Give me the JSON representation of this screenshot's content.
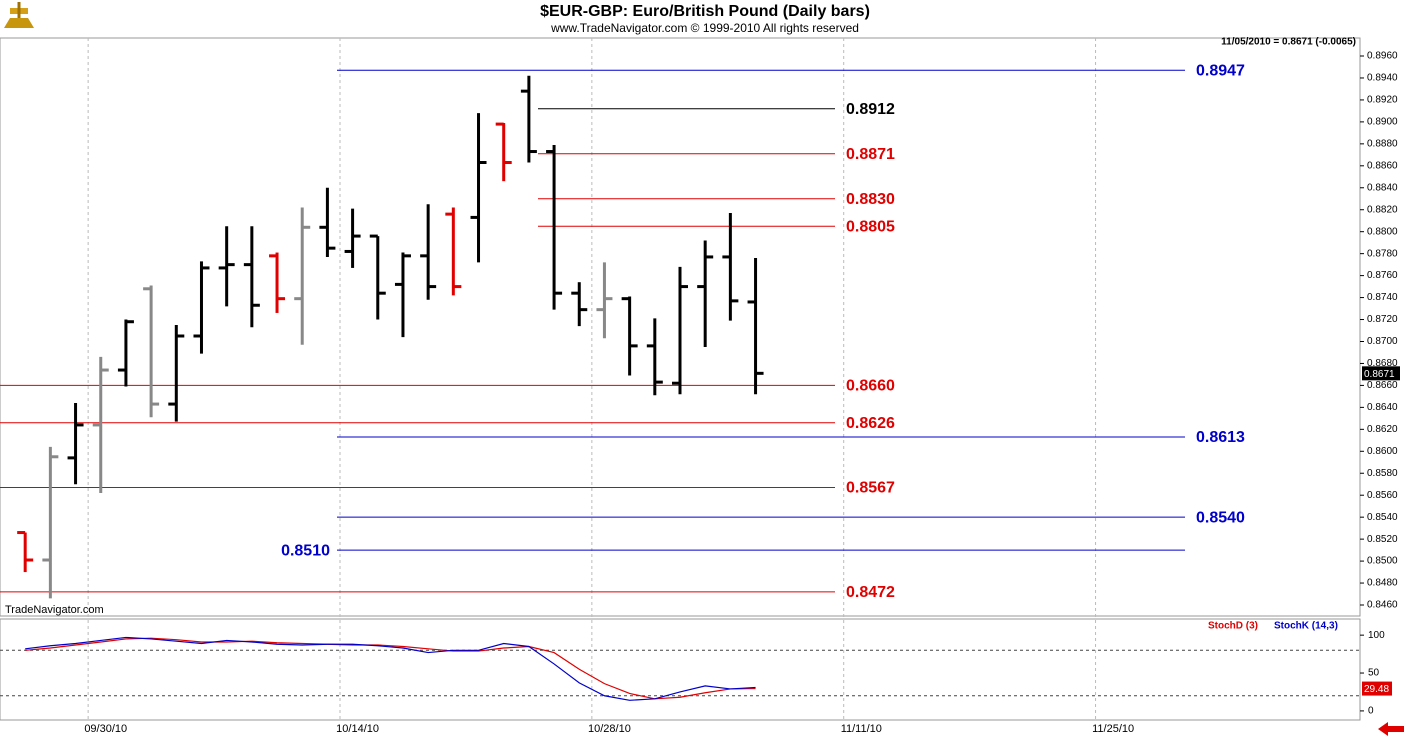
{
  "title": "$EUR-GBP:  Euro/British Pound  (Daily bars)",
  "subtitle": "www.TradeNavigator.com © 1999-2010 All rights reserved",
  "status": "11/05/2010 = 0.8671 (-0.0065)",
  "watermark": "TradeNavigator.com",
  "chart_data": [
    {
      "type": "ohlc",
      "x": [
        "09/27/10",
        "09/28/10",
        "09/29/10",
        "09/30/10",
        "10/01/10",
        "10/04/10",
        "10/05/10",
        "10/06/10",
        "10/07/10",
        "10/08/10",
        "10/11/10",
        "10/12/10",
        "10/13/10",
        "10/14/10",
        "10/15/10",
        "10/18/10",
        "10/19/10",
        "10/20/10",
        "10/21/10",
        "10/22/10",
        "10/25/10",
        "10/26/10",
        "10/27/10",
        "10/28/10",
        "10/29/10",
        "11/01/10",
        "11/02/10",
        "11/03/10",
        "11/04/10",
        "11/05/10"
      ],
      "open": [
        0.8526,
        0.8501,
        0.8594,
        0.8624,
        0.8674,
        0.8748,
        0.8643,
        0.8705,
        0.8767,
        0.877,
        0.8778,
        0.8739,
        0.8804,
        0.8782,
        0.8796,
        0.8752,
        0.8778,
        0.8816,
        0.8813,
        0.8898,
        0.8928,
        0.8873,
        0.8744,
        0.8729,
        0.8739,
        0.8696,
        0.8662,
        0.875,
        0.8777,
        0.8736
      ],
      "high": [
        0.8526,
        0.8604,
        0.8644,
        0.8686,
        0.872,
        0.8751,
        0.8715,
        0.8773,
        0.8805,
        0.8805,
        0.8781,
        0.8822,
        0.884,
        0.8821,
        0.8796,
        0.8781,
        0.8825,
        0.8822,
        0.8908,
        0.8899,
        0.8942,
        0.8879,
        0.8754,
        0.8772,
        0.8741,
        0.8721,
        0.8768,
        0.8792,
        0.8817,
        0.8776
      ],
      "low": [
        0.849,
        0.8466,
        0.857,
        0.8562,
        0.8659,
        0.8631,
        0.8627,
        0.8689,
        0.8732,
        0.8713,
        0.8726,
        0.8697,
        0.8777,
        0.8767,
        0.872,
        0.8704,
        0.8738,
        0.8742,
        0.8772,
        0.8846,
        0.8863,
        0.8729,
        0.8714,
        0.8703,
        0.8669,
        0.8651,
        0.8652,
        0.8695,
        0.8719,
        0.8652
      ],
      "close": [
        0.8501,
        0.8595,
        0.8624,
        0.8674,
        0.8718,
        0.8643,
        0.8705,
        0.8767,
        0.877,
        0.8733,
        0.8739,
        0.8804,
        0.8785,
        0.8796,
        0.8744,
        0.8778,
        0.875,
        0.875,
        0.8863,
        0.8863,
        0.8873,
        0.8744,
        0.8729,
        0.8739,
        0.8696,
        0.8663,
        0.875,
        0.8777,
        0.8737,
        0.8671
      ],
      "colors": [
        "#e00000",
        "#888888",
        "#000000",
        "#888888",
        "#000000",
        "#888888",
        "#000000",
        "#000000",
        "#000000",
        "#000000",
        "#e00000",
        "#888888",
        "#000000",
        "#000000",
        "#000000",
        "#000000",
        "#000000",
        "#e00000",
        "#000000",
        "#e00000",
        "#000000",
        "#000000",
        "#000000",
        "#888888",
        "#000000",
        "#000000",
        "#000000",
        "#000000",
        "#000000",
        "#000000"
      ],
      "xlim": [
        "09/24/10",
        "12/09/10"
      ],
      "xticks": [
        "09/30/10",
        "10/14/10",
        "10/28/10",
        "11/11/10",
        "11/25/10"
      ],
      "ylim": [
        0.84509,
        0.89764
      ],
      "yticks": [
        {
          "value": 0.846,
          "label": "0.8460"
        },
        {
          "value": 0.848,
          "label": "0.8480"
        },
        {
          "value": 0.85,
          "label": "0.8500"
        },
        {
          "value": 0.852,
          "label": "0.8520"
        },
        {
          "value": 0.854,
          "label": "0.8540"
        },
        {
          "value": 0.856,
          "label": "0.8560"
        },
        {
          "value": 0.858,
          "label": "0.8580"
        },
        {
          "value": 0.86,
          "label": "0.8600"
        },
        {
          "value": 0.862,
          "label": "0.8620"
        },
        {
          "value": 0.864,
          "label": "0.8640"
        },
        {
          "value": 0.866,
          "label": "0.8660"
        },
        {
          "value": 0.868,
          "label": "0.8680"
        },
        {
          "value": 0.87,
          "label": "0.8700"
        },
        {
          "value": 0.872,
          "label": "0.8720"
        },
        {
          "value": 0.874,
          "label": "0.8740"
        },
        {
          "value": 0.876,
          "label": "0.8760"
        },
        {
          "value": 0.878,
          "label": "0.8780"
        },
        {
          "value": 0.88,
          "label": "0.8800"
        },
        {
          "value": 0.882,
          "label": "0.8820"
        },
        {
          "value": 0.884,
          "label": "0.8840"
        },
        {
          "value": 0.886,
          "label": "0.8860"
        },
        {
          "value": 0.888,
          "label": "0.8880"
        },
        {
          "value": 0.89,
          "label": "0.8900"
        },
        {
          "value": 0.892,
          "label": "0.8920"
        },
        {
          "value": 0.894,
          "label": "0.8940"
        },
        {
          "value": 0.896,
          "label": "0.8960"
        }
      ],
      "last_value": 0.8671,
      "levels": [
        {
          "value": 0.8947,
          "label": "0.8947",
          "color": "#0000cc"
        },
        {
          "value": 0.8912,
          "label": "0.8912",
          "color": "#000000"
        },
        {
          "value": 0.8871,
          "label": "0.8871",
          "color": "#e00000"
        },
        {
          "value": 0.883,
          "label": "0.8830",
          "color": "#e00000"
        },
        {
          "value": 0.8805,
          "label": "0.8805",
          "color": "#e00000"
        },
        {
          "value": 0.866,
          "label": "0.8660",
          "color": "#e00000"
        },
        {
          "value": 0.8626,
          "label": "0.8626",
          "color": "#e00000"
        },
        {
          "value": 0.8613,
          "label": "0.8613",
          "color": "#0000cc"
        },
        {
          "value": 0.8567,
          "label": "0.8567",
          "color": "#e00000"
        },
        {
          "value": 0.854,
          "label": "0.8540",
          "color": "#0000cc"
        },
        {
          "value": 0.851,
          "label": "0.8510",
          "color": "#0000cc"
        },
        {
          "value": 0.8472,
          "label": "0.8472",
          "color": "#e00000"
        }
      ]
    },
    {
      "type": "line",
      "series": [
        {
          "name": "StochD (3)",
          "color": "#e00000",
          "values": [
            80,
            83,
            87,
            91,
            95,
            96,
            94,
            91,
            91,
            92,
            90,
            89,
            88,
            87,
            87,
            85,
            82,
            79,
            79,
            83,
            85,
            77,
            55,
            36,
            23,
            16,
            18,
            24,
            29,
            29.48
          ]
        },
        {
          "name": "StochK (14,3)",
          "color": "#0000cc",
          "values": [
            82,
            86,
            89,
            93,
            97,
            95,
            92,
            89,
            93,
            91,
            88,
            87,
            88,
            88,
            86,
            83,
            77,
            80,
            80,
            89,
            85,
            62,
            37,
            20,
            14,
            16,
            25,
            33,
            29,
            31
          ]
        }
      ],
      "ylim": [
        -12,
        120
      ],
      "yticks": [
        0,
        50,
        100
      ],
      "reference_lines": [
        20,
        80
      ],
      "last_value": 29.48
    }
  ]
}
